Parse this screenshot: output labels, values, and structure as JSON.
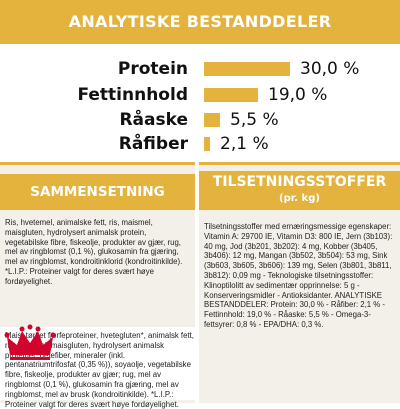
{
  "header": {
    "title": "ANALYTISKE BESTANDDELER"
  },
  "chart_data": {
    "type": "bar",
    "title": "ANALYTISKE BESTANDDELER",
    "categories": [
      "Protein",
      "Fettinnhold",
      "Råaske",
      "Råfiber"
    ],
    "values": [
      30.0,
      19.0,
      5.5,
      2.1
    ],
    "value_labels": [
      "30,0 %",
      "19,0 %",
      "5,5 %",
      "2,1 %"
    ],
    "unit": "%",
    "xlim": [
      0,
      30
    ],
    "bar_color": "#e3b33e"
  },
  "composition": {
    "title": "SAMMENSETNING",
    "intro": "Ris, hvetemel, animalske fett, ris, maismel, maisgluten, hydrolysert animalsk protein, vegetabilske fibre, fiskeolje, produkter av gjær, rug, mel av ringblomst (0,1 %), glukosamin fra gjæring, mel av ringblomst, kondroitinklorid (kondroitinkilde). *L.I.P.: Proteiner valgt for deres svært høye fordøyelighet.",
    "text": "Mais, tørket fjørfeproteiner, hvetegluten*, animalsk fett, ris, maismel, maisgluten, hydrolysert animalsk proteiner, betefiber, mineraler (inkl. pentanatriumtrifosfat (0,35 %)), soyaolje, vegetabilske fibre, fiskeolje, produkter av gjær; rug, mel av ringblomst (0,1 %), glukosamin fra gjæring, mel av ringblomst, mel av brusk (kondroitinkilde). *L.I.P.: Proteiner valgt for deres svært høye fordøyelighet."
  },
  "additives": {
    "title": "TILSETNINGSSTOFFER",
    "subtitle": "(pr. kg)",
    "text": "Tilsetningsstoffer med ernæringsmessige egenskaper: Vitamin A: 29700 IE, Vitamin D3: 800 IE, Jern (3b103): 40 mg, Jod (3b201, 3b202): 4 mg, Kobber (3b405, 3b406): 12 mg, Mangan (3b502, 3b504): 53 mg, Sink (3b603, 3b605, 3b606): 139 mg, Selen (3b801, 3b811, 3b812): 0,09 mg - Teknologiske tilsetningsstoffer: Klinoptilolitt av sedimentær opprinnelse: 5 g - Konserveringsmidler - Antioksidanter. ANALYTISKE BESTANDDELER: Protein: 30,0 % - Råfiber: 2,1 % - Fettinnhold: 19,0 % - Råaske: 5,5 % - Omega-3-fettsyrer: 0,8 % - EPA/DHA: 0,3 %."
  },
  "brand": {
    "logo_label": "ROYAL CANIN"
  },
  "colors": {
    "accent": "#e3b33e",
    "panel_bg": "#f3f0ea",
    "logo_red": "#d2042d"
  }
}
